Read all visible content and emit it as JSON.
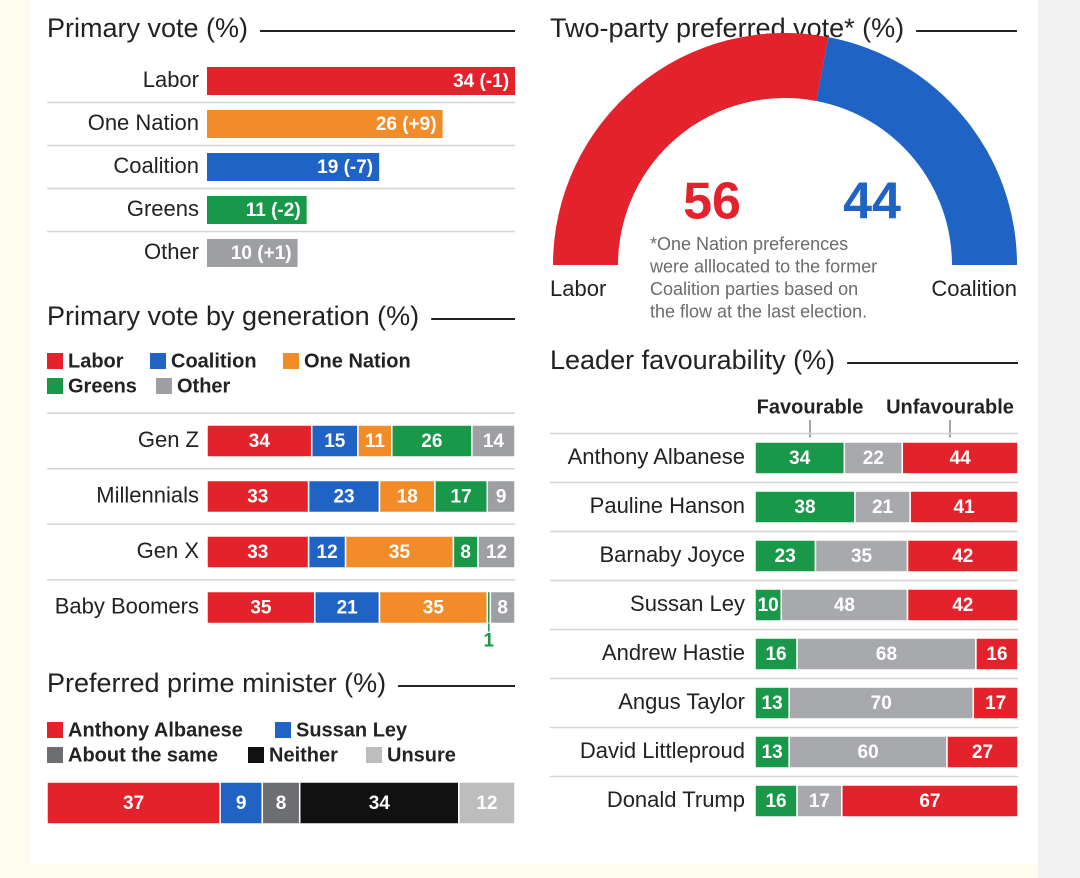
{
  "chart_data": [
    {
      "type": "bar",
      "title": "Primary vote (%)",
      "categories": [
        "Labor",
        "One Nation",
        "Coalition",
        "Greens",
        "Other"
      ],
      "values": [
        34,
        26,
        19,
        11,
        10
      ],
      "value_labels": [
        "34 (-1)",
        "26 (+9)",
        "19 (-7)",
        "11 (-2)",
        "10 (+1)"
      ],
      "colors": [
        "#e3222b",
        "#f28c28",
        "#1f63c4",
        "#1a9849",
        "#9d9fa2"
      ]
    },
    {
      "type": "pie",
      "title": "Two-party preferred vote* (%)",
      "categories": [
        "Labor",
        "Coalition"
      ],
      "values": [
        56,
        44
      ],
      "colors": [
        "#e3222b",
        "#1f63c4"
      ],
      "annotation": [
        "*One Nation preferences",
        "were alllocated to the former",
        "Coalition parties based on",
        "the flow at the last election."
      ]
    },
    {
      "type": "stacked_bar",
      "title": "Primary vote by generation (%)",
      "categories": [
        "Gen Z",
        "Millennials",
        "Gen X",
        "Baby Boomers"
      ],
      "series": [
        {
          "name": "Labor",
          "color": "#e3222b",
          "values": [
            34,
            33,
            33,
            35
          ]
        },
        {
          "name": "Coalition",
          "color": "#1f63c4",
          "values": [
            15,
            23,
            12,
            21
          ]
        },
        {
          "name": "One Nation",
          "color": "#f28c28",
          "values": [
            11,
            18,
            35,
            35
          ]
        },
        {
          "name": "Greens",
          "color": "#1a9849",
          "values": [
            26,
            17,
            8,
            1
          ]
        },
        {
          "name": "Other",
          "color": "#9d9fa2",
          "values": [
            14,
            9,
            12,
            8
          ]
        }
      ]
    },
    {
      "type": "stacked_bar",
      "title": "Preferred prime minister (%)",
      "series": [
        {
          "name": "Anthony Albanese",
          "color": "#e3222b",
          "values": [
            37
          ]
        },
        {
          "name": "Sussan Ley",
          "color": "#1f63c4",
          "values": [
            9
          ]
        },
        {
          "name": "About the same",
          "color": "#6d6e71",
          "values": [
            8
          ]
        },
        {
          "name": "Neither",
          "color": "#111111",
          "values": [
            34
          ]
        },
        {
          "name": "Unsure",
          "color": "#bdbdbd",
          "values": [
            12
          ]
        }
      ]
    },
    {
      "type": "stacked_bar",
      "title": "Leader favourability (%)",
      "categories": [
        "Anthony Albanese",
        "Pauline Hanson",
        "Barnaby Joyce",
        "Sussan Ley",
        "Andrew Hastie",
        "Angus Taylor",
        "David Littleproud",
        "Donald Trump"
      ],
      "series": [
        {
          "name": "Favourable",
          "color": "#1a9849",
          "values": [
            34,
            38,
            23,
            10,
            16,
            13,
            13,
            16
          ]
        },
        {
          "color": "#a7a9ac",
          "values": [
            22,
            21,
            35,
            48,
            68,
            70,
            60,
            17
          ]
        },
        {
          "name": "Unfavourable",
          "color": "#e3222b",
          "values": [
            44,
            41,
            42,
            42,
            16,
            17,
            27,
            67
          ]
        }
      ]
    }
  ]
}
